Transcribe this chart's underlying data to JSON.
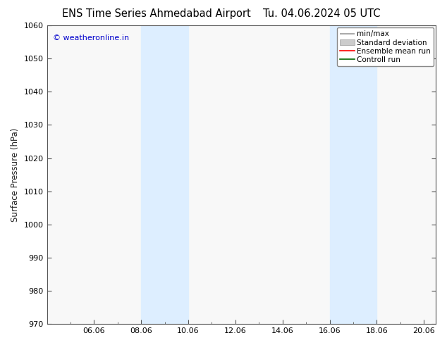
{
  "title_left": "ENS Time Series Ahmedabad Airport",
  "title_right": "Tu. 04.06.2024 05 UTC",
  "ylabel": "Surface Pressure (hPa)",
  "ylim": [
    970,
    1060
  ],
  "yticks": [
    970,
    980,
    990,
    1000,
    1010,
    1020,
    1030,
    1040,
    1050,
    1060
  ],
  "xlim": [
    0,
    16.5
  ],
  "xtick_labels": [
    "06.06",
    "08.06",
    "10.06",
    "12.06",
    "14.06",
    "16.06",
    "18.06",
    "20.06"
  ],
  "xtick_positions": [
    2,
    4,
    6,
    8,
    10,
    12,
    14,
    16
  ],
  "shaded_regions": [
    {
      "x_start": 4.0,
      "x_end": 6.0
    },
    {
      "x_start": 12.0,
      "x_end": 14.0
    }
  ],
  "shade_color": "#ddeeff",
  "watermark_text": "© weatheronline.in",
  "watermark_color": "#0000cc",
  "legend_entries": [
    {
      "label": "min/max",
      "color": "#aaaaaa",
      "type": "errorbar"
    },
    {
      "label": "Standard deviation",
      "color": "#cccccc",
      "type": "bar"
    },
    {
      "label": "Ensemble mean run",
      "color": "red",
      "type": "line"
    },
    {
      "label": "Controll run",
      "color": "green",
      "type": "line"
    }
  ],
  "background_color": "#ffffff",
  "plot_bg_color": "#f8f8f8",
  "spine_color": "#555555",
  "title_fontsize": 10.5,
  "axis_fontsize": 8.5,
  "tick_fontsize": 8,
  "legend_fontsize": 7.5
}
